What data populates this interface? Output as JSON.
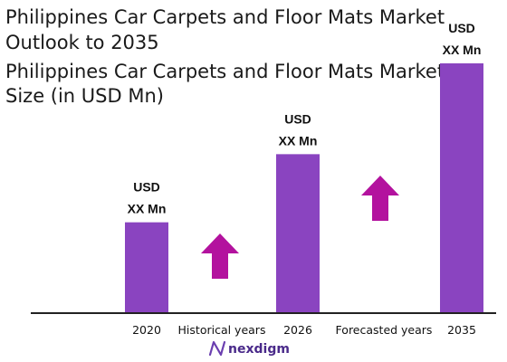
{
  "title_lines": [
    "Philippines Car Carpets and Floor Mats Market",
    "Outlook to 2035"
  ],
  "subtitle_lines": [
    "Philippines Car Carpets and Floor Mats Market",
    "Size (in USD Mn)"
  ],
  "brand": {
    "name": "nexdigm",
    "icon": "nexdigm-logo-icon"
  },
  "colors": {
    "bar": "#8a44c0",
    "arrow": "#b3129e",
    "axis": "#222222",
    "text": "#1a1a1a"
  },
  "period_labels": [
    "Historical years",
    "Forecasted years"
  ],
  "chart_data": {
    "type": "bar",
    "title": "Philippines Car Carpets and Floor Mats Market Outlook to 2035",
    "subtitle": "Philippines Car Carpets and Floor Mats Market Size (in USD Mn)",
    "categories": [
      "2020",
      "2026",
      "2035"
    ],
    "values": [
      100,
      175,
      275
    ],
    "data_labels": [
      [
        "USD",
        "XX Mn"
      ],
      [
        "USD",
        "XX Mn"
      ],
      [
        "USD",
        "XX Mn"
      ]
    ],
    "xlabel": "",
    "ylabel": "",
    "grid": false,
    "legend": "none",
    "growth_arrows": [
      "up",
      "up"
    ]
  }
}
